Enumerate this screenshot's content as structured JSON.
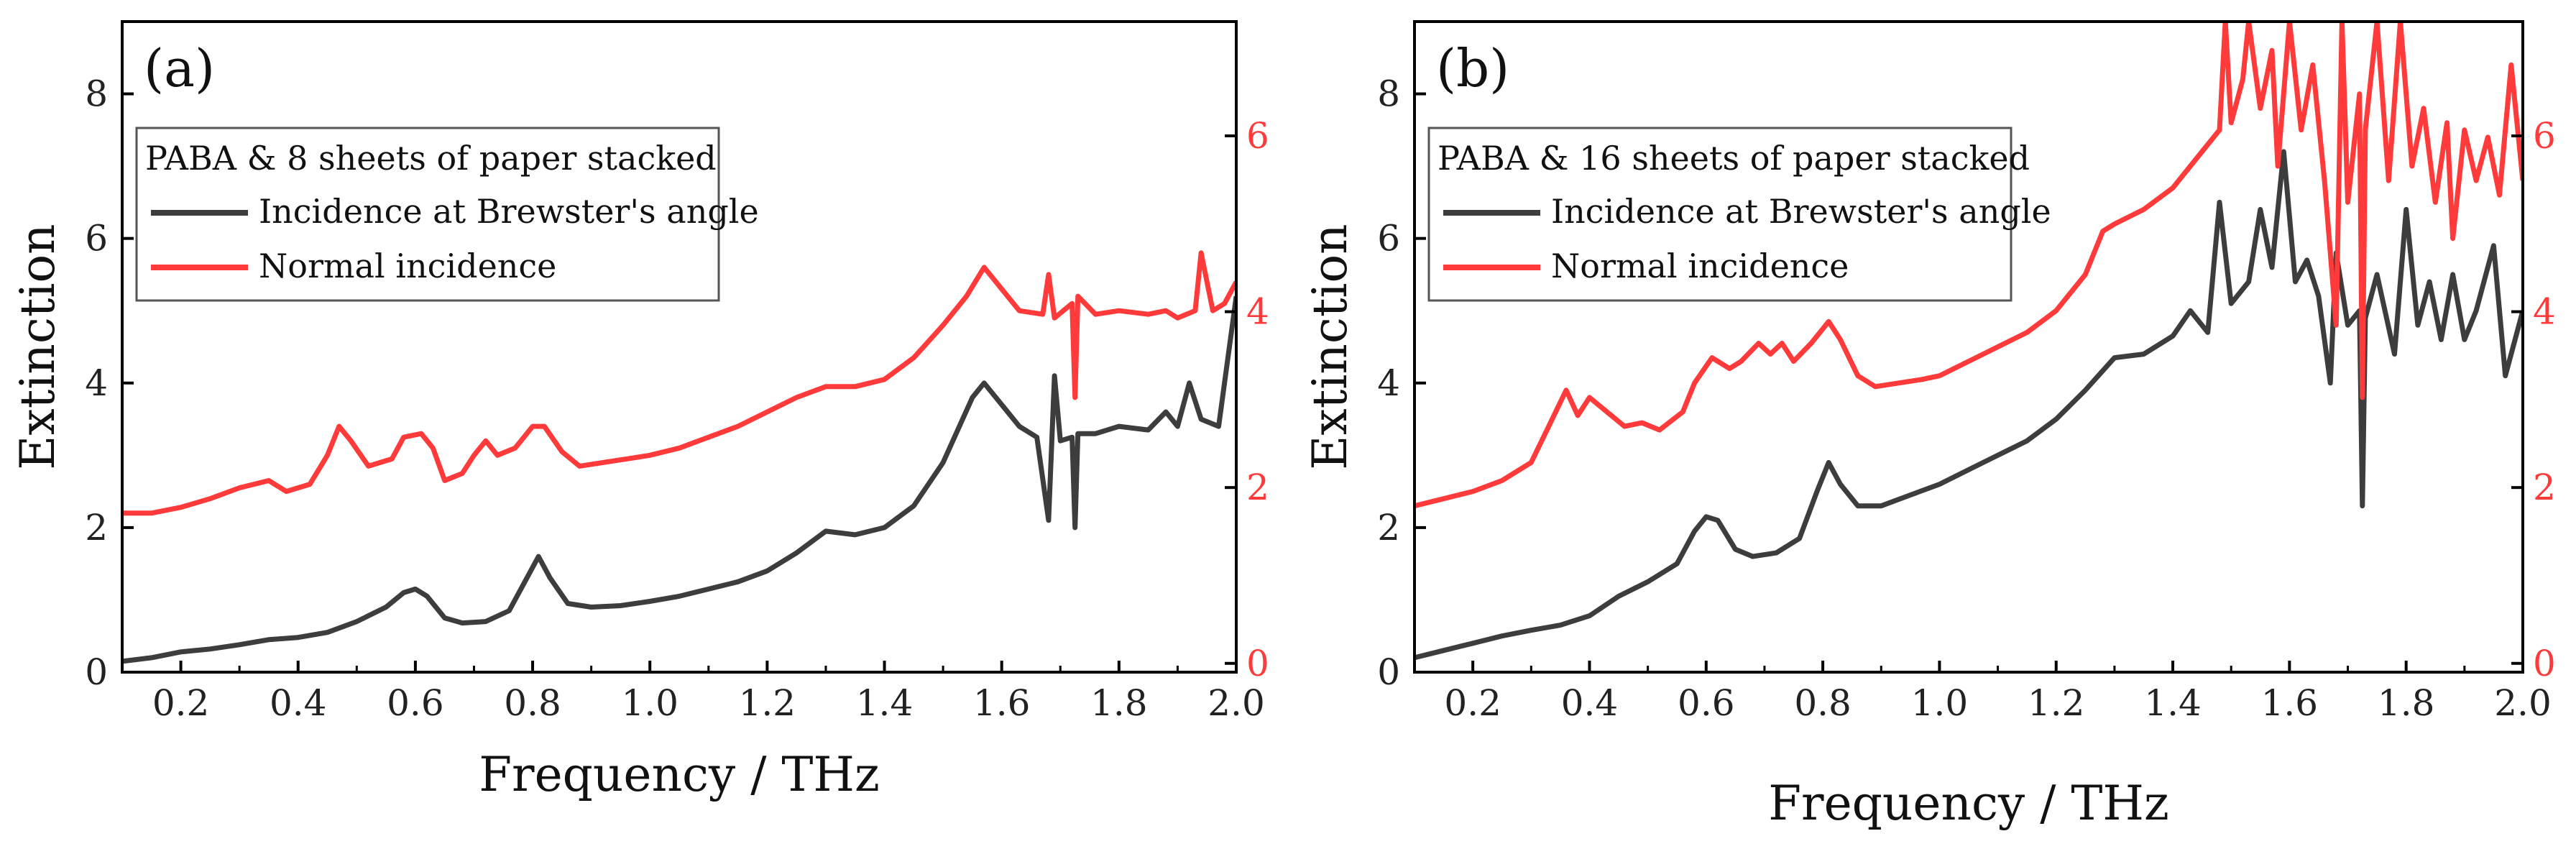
{
  "chart_data": [
    {
      "type": "line",
      "panel_label": "(a)",
      "xlabel": "Frequency / THz",
      "ylabel": "Extinction",
      "xlim": [
        0.1,
        2.0
      ],
      "ylim": [
        0,
        9
      ],
      "y2lim": [
        -0.1,
        7.3
      ],
      "x_ticks": [
        "0.2",
        "0.4",
        "0.6",
        "0.8",
        "1.0",
        "1.2",
        "1.4",
        "1.6",
        "1.8",
        "2.0"
      ],
      "y_ticks": [
        "0",
        "2",
        "4",
        "6",
        "8"
      ],
      "y2_ticks": [
        "0",
        "2",
        "4",
        "6"
      ],
      "legend_title": "PABA & 8 sheets of paper stacked",
      "legend_position": "top-left",
      "series": [
        {
          "name": "Incidence at Brewster's angle",
          "color": "#3d3d3d",
          "axis": "left",
          "points": [
            [
              0.1,
              0.15
            ],
            [
              0.15,
              0.2
            ],
            [
              0.2,
              0.28
            ],
            [
              0.25,
              0.32
            ],
            [
              0.3,
              0.38
            ],
            [
              0.35,
              0.45
            ],
            [
              0.4,
              0.48
            ],
            [
              0.45,
              0.55
            ],
            [
              0.5,
              0.7
            ],
            [
              0.55,
              0.9
            ],
            [
              0.58,
              1.1
            ],
            [
              0.6,
              1.15
            ],
            [
              0.62,
              1.05
            ],
            [
              0.65,
              0.75
            ],
            [
              0.68,
              0.68
            ],
            [
              0.72,
              0.7
            ],
            [
              0.76,
              0.85
            ],
            [
              0.79,
              1.3
            ],
            [
              0.81,
              1.6
            ],
            [
              0.83,
              1.3
            ],
            [
              0.86,
              0.95
            ],
            [
              0.9,
              0.9
            ],
            [
              0.95,
              0.92
            ],
            [
              1.0,
              0.98
            ],
            [
              1.05,
              1.05
            ],
            [
              1.1,
              1.15
            ],
            [
              1.15,
              1.25
            ],
            [
              1.2,
              1.4
            ],
            [
              1.25,
              1.65
            ],
            [
              1.3,
              1.95
            ],
            [
              1.35,
              1.9
            ],
            [
              1.4,
              2.0
            ],
            [
              1.45,
              2.3
            ],
            [
              1.5,
              2.9
            ],
            [
              1.55,
              3.8
            ],
            [
              1.57,
              4.0
            ],
            [
              1.6,
              3.7
            ],
            [
              1.63,
              3.4
            ],
            [
              1.66,
              3.25
            ],
            [
              1.68,
              2.1
            ],
            [
              1.69,
              4.1
            ],
            [
              1.7,
              3.2
            ],
            [
              1.72,
              3.25
            ],
            [
              1.725,
              2.0
            ],
            [
              1.73,
              3.3
            ],
            [
              1.76,
              3.3
            ],
            [
              1.8,
              3.4
            ],
            [
              1.85,
              3.35
            ],
            [
              1.88,
              3.6
            ],
            [
              1.9,
              3.4
            ],
            [
              1.92,
              4.0
            ],
            [
              1.94,
              3.5
            ],
            [
              1.97,
              3.4
            ],
            [
              2.0,
              5.2
            ]
          ]
        },
        {
          "name": "Normal incidence",
          "color": "#ff3a3a",
          "axis": "left",
          "points": [
            [
              0.1,
              2.2
            ],
            [
              0.15,
              2.2
            ],
            [
              0.2,
              2.28
            ],
            [
              0.25,
              2.4
            ],
            [
              0.3,
              2.55
            ],
            [
              0.35,
              2.65
            ],
            [
              0.38,
              2.5
            ],
            [
              0.42,
              2.6
            ],
            [
              0.45,
              3.0
            ],
            [
              0.47,
              3.4
            ],
            [
              0.49,
              3.2
            ],
            [
              0.52,
              2.85
            ],
            [
              0.56,
              2.95
            ],
            [
              0.58,
              3.25
            ],
            [
              0.61,
              3.3
            ],
            [
              0.63,
              3.1
            ],
            [
              0.65,
              2.65
            ],
            [
              0.68,
              2.75
            ],
            [
              0.7,
              3.0
            ],
            [
              0.72,
              3.2
            ],
            [
              0.74,
              3.0
            ],
            [
              0.77,
              3.1
            ],
            [
              0.8,
              3.4
            ],
            [
              0.82,
              3.4
            ],
            [
              0.85,
              3.05
            ],
            [
              0.88,
              2.85
            ],
            [
              0.92,
              2.9
            ],
            [
              0.96,
              2.95
            ],
            [
              1.0,
              3.0
            ],
            [
              1.05,
              3.1
            ],
            [
              1.1,
              3.25
            ],
            [
              1.15,
              3.4
            ],
            [
              1.2,
              3.6
            ],
            [
              1.25,
              3.8
            ],
            [
              1.3,
              3.95
            ],
            [
              1.35,
              3.95
            ],
            [
              1.4,
              4.05
            ],
            [
              1.45,
              4.35
            ],
            [
              1.5,
              4.8
            ],
            [
              1.54,
              5.2
            ],
            [
              1.57,
              5.6
            ],
            [
              1.6,
              5.3
            ],
            [
              1.63,
              5.0
            ],
            [
              1.67,
              4.95
            ],
            [
              1.68,
              5.5
            ],
            [
              1.69,
              4.9
            ],
            [
              1.72,
              5.1
            ],
            [
              1.725,
              3.8
            ],
            [
              1.73,
              5.2
            ],
            [
              1.76,
              4.95
            ],
            [
              1.8,
              5.0
            ],
            [
              1.85,
              4.95
            ],
            [
              1.88,
              5.0
            ],
            [
              1.9,
              4.9
            ],
            [
              1.93,
              5.0
            ],
            [
              1.94,
              5.8
            ],
            [
              1.96,
              5.0
            ],
            [
              1.98,
              5.1
            ],
            [
              2.0,
              5.4
            ]
          ]
        }
      ]
    },
    {
      "type": "line",
      "panel_label": "(b)",
      "xlabel": "Frequency / THz",
      "ylabel": "Extinction",
      "xlim": [
        0.1,
        2.0
      ],
      "ylim": [
        0,
        9
      ],
      "y2lim": [
        -0.1,
        7.3
      ],
      "x_ticks": [
        "0.2",
        "0.4",
        "0.6",
        "0.8",
        "1.0",
        "1.2",
        "1.4",
        "1.6",
        "1.8",
        "2.0"
      ],
      "y_ticks": [
        "0",
        "2",
        "4",
        "6",
        "8"
      ],
      "y2_ticks": [
        "0",
        "2",
        "4",
        "6"
      ],
      "legend_title": "PABA & 16 sheets of paper stacked",
      "legend_position": "top-left",
      "series": [
        {
          "name": "Incidence at Brewster's angle",
          "color": "#3d3d3d",
          "axis": "left",
          "points": [
            [
              0.1,
              0.2
            ],
            [
              0.15,
              0.3
            ],
            [
              0.2,
              0.4
            ],
            [
              0.25,
              0.5
            ],
            [
              0.3,
              0.58
            ],
            [
              0.35,
              0.65
            ],
            [
              0.4,
              0.78
            ],
            [
              0.45,
              1.05
            ],
            [
              0.5,
              1.25
            ],
            [
              0.55,
              1.5
            ],
            [
              0.58,
              1.95
            ],
            [
              0.6,
              2.15
            ],
            [
              0.62,
              2.1
            ],
            [
              0.65,
              1.7
            ],
            [
              0.68,
              1.6
            ],
            [
              0.72,
              1.65
            ],
            [
              0.76,
              1.85
            ],
            [
              0.79,
              2.5
            ],
            [
              0.81,
              2.9
            ],
            [
              0.83,
              2.6
            ],
            [
              0.86,
              2.3
            ],
            [
              0.9,
              2.3
            ],
            [
              0.95,
              2.45
            ],
            [
              1.0,
              2.6
            ],
            [
              1.05,
              2.8
            ],
            [
              1.1,
              3.0
            ],
            [
              1.15,
              3.2
            ],
            [
              1.2,
              3.5
            ],
            [
              1.25,
              3.9
            ],
            [
              1.3,
              4.35
            ],
            [
              1.35,
              4.4
            ],
            [
              1.4,
              4.65
            ],
            [
              1.43,
              5.0
            ],
            [
              1.46,
              4.7
            ],
            [
              1.48,
              6.5
            ],
            [
              1.5,
              5.1
            ],
            [
              1.53,
              5.4
            ],
            [
              1.55,
              6.4
            ],
            [
              1.57,
              5.6
            ],
            [
              1.59,
              7.2
            ],
            [
              1.61,
              5.4
            ],
            [
              1.63,
              5.7
            ],
            [
              1.65,
              5.2
            ],
            [
              1.67,
              4.0
            ],
            [
              1.68,
              5.8
            ],
            [
              1.7,
              4.8
            ],
            [
              1.72,
              5.0
            ],
            [
              1.725,
              2.3
            ],
            [
              1.73,
              4.9
            ],
            [
              1.75,
              5.5
            ],
            [
              1.78,
              4.4
            ],
            [
              1.8,
              6.4
            ],
            [
              1.82,
              4.8
            ],
            [
              1.84,
              5.4
            ],
            [
              1.86,
              4.6
            ],
            [
              1.88,
              5.5
            ],
            [
              1.9,
              4.6
            ],
            [
              1.92,
              5.0
            ],
            [
              1.95,
              5.9
            ],
            [
              1.97,
              4.1
            ],
            [
              2.0,
              5.0
            ]
          ]
        },
        {
          "name": "Normal incidence",
          "color": "#ff3a3a",
          "axis": "left",
          "points": [
            [
              0.1,
              2.3
            ],
            [
              0.15,
              2.4
            ],
            [
              0.2,
              2.5
            ],
            [
              0.25,
              2.65
            ],
            [
              0.3,
              2.9
            ],
            [
              0.33,
              3.4
            ],
            [
              0.36,
              3.9
            ],
            [
              0.38,
              3.55
            ],
            [
              0.4,
              3.8
            ],
            [
              0.43,
              3.6
            ],
            [
              0.46,
              3.4
            ],
            [
              0.49,
              3.45
            ],
            [
              0.52,
              3.35
            ],
            [
              0.56,
              3.6
            ],
            [
              0.58,
              4.0
            ],
            [
              0.61,
              4.35
            ],
            [
              0.64,
              4.2
            ],
            [
              0.66,
              4.3
            ],
            [
              0.69,
              4.55
            ],
            [
              0.71,
              4.4
            ],
            [
              0.73,
              4.55
            ],
            [
              0.75,
              4.3
            ],
            [
              0.78,
              4.55
            ],
            [
              0.81,
              4.85
            ],
            [
              0.83,
              4.6
            ],
            [
              0.86,
              4.1
            ],
            [
              0.89,
              3.95
            ],
            [
              0.93,
              4.0
            ],
            [
              0.97,
              4.05
            ],
            [
              1.0,
              4.1
            ],
            [
              1.05,
              4.3
            ],
            [
              1.1,
              4.5
            ],
            [
              1.15,
              4.7
            ],
            [
              1.2,
              5.0
            ],
            [
              1.25,
              5.5
            ],
            [
              1.28,
              6.1
            ],
            [
              1.3,
              6.2
            ],
            [
              1.35,
              6.4
            ],
            [
              1.4,
              6.7
            ],
            [
              1.45,
              7.2
            ],
            [
              1.48,
              7.5
            ],
            [
              1.49,
              9.0
            ],
            [
              1.5,
              7.6
            ],
            [
              1.52,
              8.2
            ],
            [
              1.53,
              9.0
            ],
            [
              1.55,
              7.8
            ],
            [
              1.57,
              8.6
            ],
            [
              1.58,
              7.0
            ],
            [
              1.6,
              9.0
            ],
            [
              1.62,
              7.5
            ],
            [
              1.64,
              8.4
            ],
            [
              1.66,
              6.8
            ],
            [
              1.68,
              4.8
            ],
            [
              1.69,
              9.0
            ],
            [
              1.7,
              6.5
            ],
            [
              1.72,
              8.0
            ],
            [
              1.725,
              3.8
            ],
            [
              1.73,
              7.5
            ],
            [
              1.75,
              9.0
            ],
            [
              1.77,
              6.8
            ],
            [
              1.79,
              9.0
            ],
            [
              1.81,
              7.0
            ],
            [
              1.83,
              7.8
            ],
            [
              1.85,
              6.5
            ],
            [
              1.87,
              7.6
            ],
            [
              1.88,
              6.0
            ],
            [
              1.9,
              7.5
            ],
            [
              1.92,
              6.8
            ],
            [
              1.94,
              7.4
            ],
            [
              1.96,
              6.6
            ],
            [
              1.98,
              8.4
            ],
            [
              2.0,
              6.8
            ]
          ]
        }
      ]
    }
  ]
}
